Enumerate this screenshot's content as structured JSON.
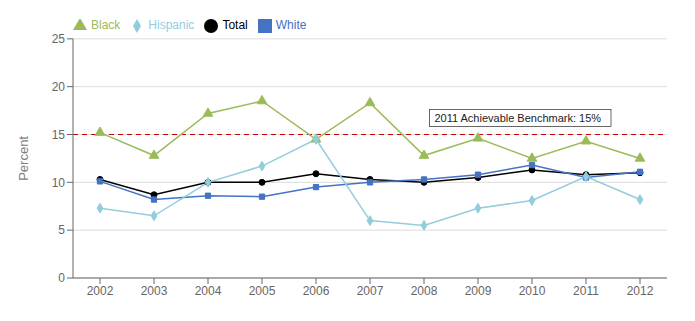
{
  "chart_data": {
    "type": "line",
    "ylabel": "Percent",
    "x": [
      2002,
      2003,
      2004,
      2005,
      2006,
      2007,
      2008,
      2009,
      2010,
      2011,
      2012
    ],
    "xlim": [
      2001.5,
      2012.5
    ],
    "xticks": [
      2002,
      2003,
      2004,
      2005,
      2006,
      2007,
      2008,
      2009,
      2010,
      2011,
      2012
    ],
    "ylim": [
      0,
      25
    ],
    "yticks": [
      0,
      5,
      10,
      15,
      20,
      25
    ],
    "grid": true,
    "series": [
      {
        "name": "Total",
        "color": "#000000",
        "marker": "circle",
        "values": [
          10.3,
          8.7,
          10.0,
          10.0,
          10.9,
          10.3,
          10.0,
          10.5,
          11.3,
          10.8,
          11.0
        ]
      },
      {
        "name": "White",
        "color": "#4472C4",
        "marker": "square",
        "values": [
          10.1,
          8.2,
          8.6,
          8.5,
          9.5,
          10.0,
          10.3,
          10.8,
          11.8,
          10.5,
          11.1
        ]
      },
      {
        "name": "Black",
        "color": "#9BBB59",
        "marker": "triangle",
        "values": [
          15.2,
          12.8,
          17.2,
          18.5,
          14.5,
          18.3,
          12.8,
          14.6,
          12.5,
          14.3,
          12.5
        ]
      },
      {
        "name": "Hispanic",
        "color": "#92CDDC",
        "marker": "diamond",
        "values": [
          7.3,
          6.5,
          10.0,
          11.7,
          14.5,
          6.0,
          5.5,
          7.3,
          8.1,
          10.6,
          8.2
        ]
      }
    ],
    "annotations": [
      {
        "type": "hline",
        "y": 15.0,
        "text": "2011 Achievable Benchmark: 15%",
        "color": "#CC0000",
        "line_style": "dashed"
      }
    ]
  }
}
